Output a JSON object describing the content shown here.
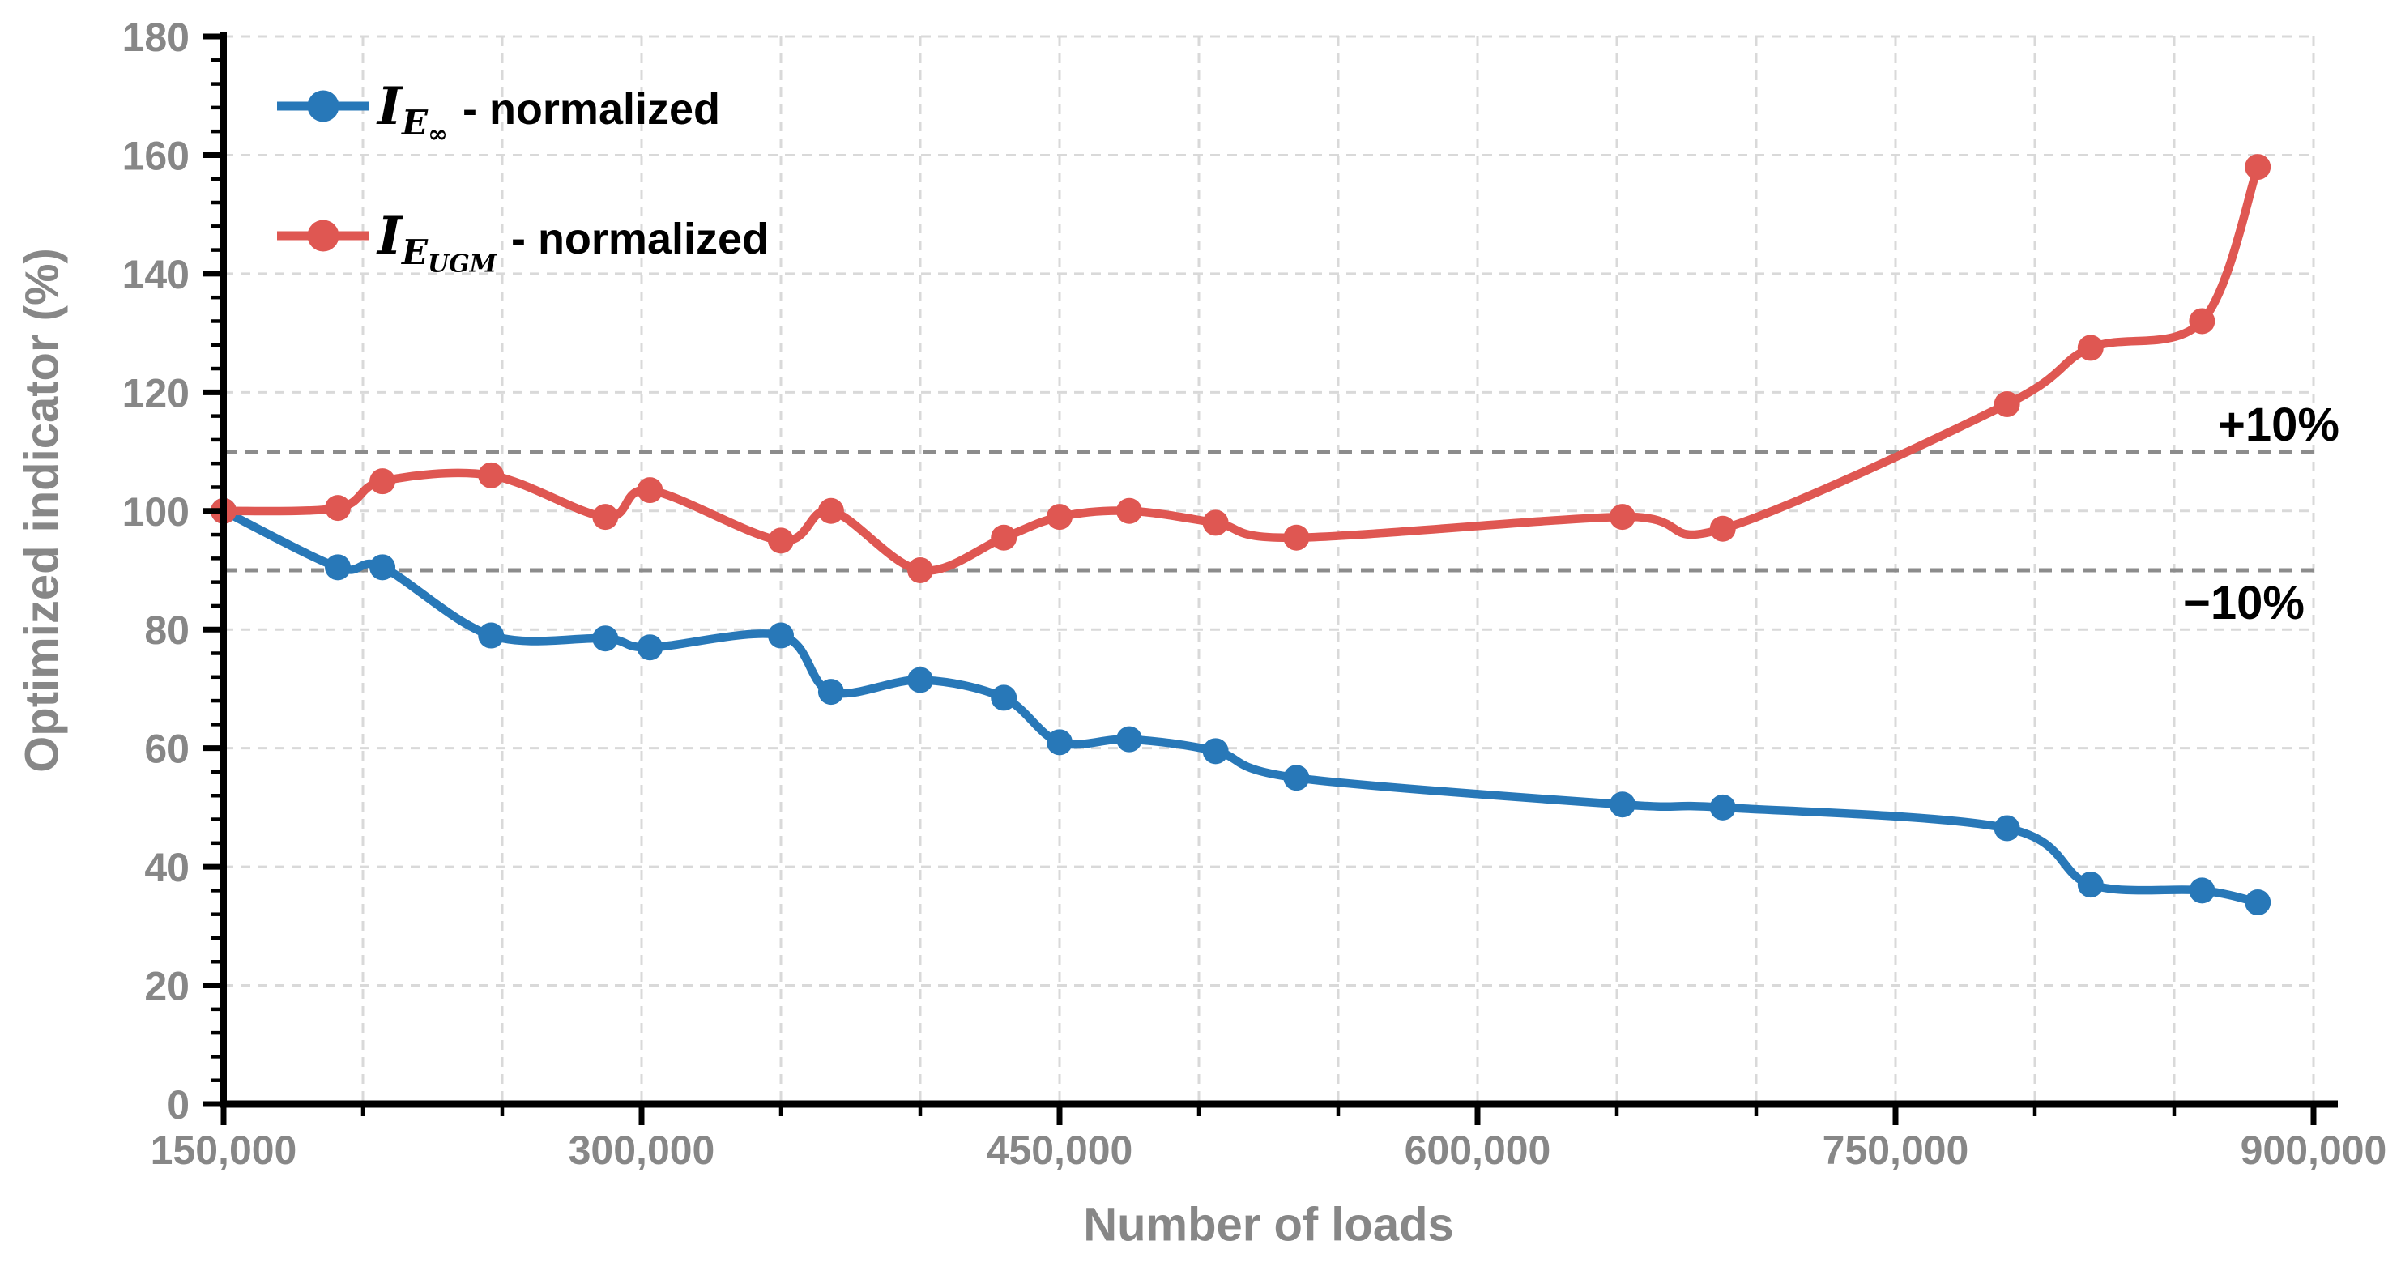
{
  "chart_data": {
    "type": "line",
    "title": "",
    "xlabel": "Number of loads",
    "ylabel": "Optimized indicator (%)",
    "xlim": [
      150000,
      900000
    ],
    "ylim": [
      0,
      180
    ],
    "x_grid_step": 50000,
    "x_major_tick_step": 150000,
    "y_major_grid_step": 20,
    "y_minor_tick_step": 4,
    "grid": true,
    "legend_position": "top-left-inside",
    "x": [
      150000,
      191000,
      207000,
      246000,
      287000,
      303000,
      350000,
      368000,
      400000,
      430000,
      450000,
      475000,
      506000,
      535000,
      652000,
      688000,
      790000,
      820000,
      860000,
      880000
    ],
    "series": [
      {
        "name": "I_E∞ - normalized",
        "color": "#2878b8",
        "values": [
          100,
          90.5,
          90.5,
          79,
          78.5,
          77,
          79,
          69.5,
          71.5,
          68.5,
          61,
          61.5,
          59.5,
          55,
          50.5,
          50,
          46.5,
          37,
          36,
          34
        ]
      },
      {
        "name": "I_E_UGM - normalized",
        "color": "#df5752",
        "values": [
          100,
          100.5,
          105,
          106,
          99,
          103.5,
          95,
          100,
          90,
          95.5,
          99,
          100,
          98,
          95.5,
          99,
          97,
          118,
          127.5,
          132,
          158
        ]
      }
    ],
    "reference_lines": [
      {
        "value": 110,
        "label": "+10%"
      },
      {
        "value": 90,
        "label": "−10%"
      }
    ]
  },
  "axes": {
    "x": {
      "title": "Number of loads",
      "tick_values": [
        150000,
        300000,
        450000,
        600000,
        750000,
        900000
      ],
      "tick_labels": [
        "150,000",
        "300,000",
        "450,000",
        "600,000",
        "750,000",
        "900,000"
      ]
    },
    "y": {
      "title": "Optimized indicator (%)",
      "tick_values": [
        0,
        20,
        40,
        60,
        80,
        100,
        120,
        140,
        160,
        180
      ],
      "tick_labels": [
        "0",
        "20",
        "40",
        "60",
        "80",
        "100",
        "120",
        "140",
        "160",
        "180"
      ]
    }
  },
  "legend": {
    "items": [
      {
        "symbol_main": "I",
        "symbol_sub": "E",
        "symbol_subsub": "∞",
        "suffix": "- normalized",
        "color": "#2878b8"
      },
      {
        "symbol_main": "I",
        "symbol_sub": "E",
        "symbol_subsub": "UGM",
        "suffix": "- normalized",
        "color": "#df5752"
      }
    ]
  },
  "colors": {
    "blue_series": "#2878b8",
    "red_series": "#df5752",
    "grid": "#d9d9d9",
    "reference_line": "#8c8c8c",
    "axis_line": "#000000",
    "tick_text": "#878787"
  }
}
